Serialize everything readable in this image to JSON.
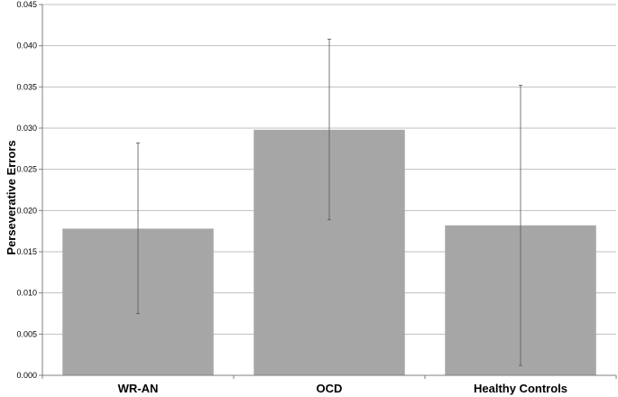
{
  "chart_data": {
    "type": "bar",
    "categories": [
      "WR-AN",
      "OCD",
      "Healthy Controls"
    ],
    "values": [
      0.0178,
      0.0298,
      0.0182
    ],
    "error_low": [
      0.0075,
      0.0189,
      0.0012
    ],
    "error_high": [
      0.0282,
      0.0408,
      0.0352
    ],
    "title": "",
    "xlabel": "",
    "ylabel": "Perseverative Errors",
    "ylim": [
      0,
      0.045
    ],
    "yticks": [
      "0.000",
      "0.005",
      "0.010",
      "0.015",
      "0.020",
      "0.025",
      "0.030",
      "0.035",
      "0.040",
      "0.045"
    ],
    "grid": true,
    "bar_color": "#a6a6a6",
    "error_bar_color": "#555555",
    "grid_color": "#bfbfbf"
  }
}
